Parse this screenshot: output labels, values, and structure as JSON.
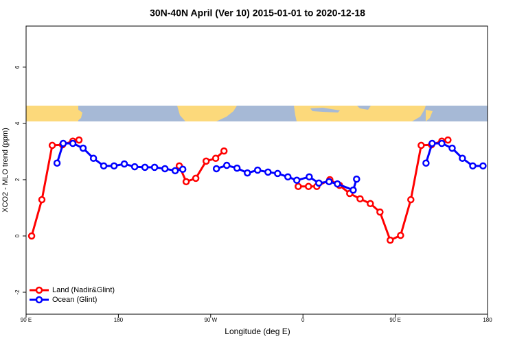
{
  "chart_data": {
    "type": "line",
    "title": "30N-40N April (Ver 10)   2015-01-01 to 2020-12-18",
    "xlabel": "Longitude (deg E)",
    "ylabel": "XCO2 - MLO trend (ppm)",
    "xlim": [
      90,
      540
    ],
    "ylim": [
      -2.78,
      7.46
    ],
    "xticks": [
      {
        "value": 90,
        "label": "90 E"
      },
      180,
      {
        "value": 270,
        "label": "90 W"
      },
      {
        "value": 360,
        "label": "0"
      },
      {
        "value": 450,
        "label": "90 E"
      },
      {
        "value": 540,
        "label": "180"
      }
    ],
    "yticks": [
      -2,
      0,
      2,
      4,
      6
    ],
    "legend": "bottom-left",
    "series": [
      {
        "name": "Land (Nadir&Glint)",
        "color": "#ff0000",
        "x": [
          95.4,
          105.4,
          115.5,
          125.5,
          135.6,
          141.6,
          null,
          239.4,
          246.1,
          255.5,
          265.6,
          274.9,
          283.0,
          null,
          355.4,
          365.4,
          373.5,
          386.2,
          395.6,
          405.6,
          415.7,
          425.7,
          435.1,
          445.1,
          455.2,
          465.2,
          475.3,
          485.3,
          495.4,
          501.4
        ],
        "values": [
          0.0,
          1.29,
          3.22,
          3.24,
          3.37,
          3.41,
          null,
          2.49,
          1.93,
          2.05,
          2.66,
          2.76,
          3.02,
          null,
          1.76,
          1.76,
          1.76,
          2.0,
          1.8,
          1.51,
          1.32,
          1.15,
          0.85,
          -0.15,
          0.02,
          1.29,
          3.22,
          3.24,
          3.37,
          3.41
        ]
      },
      {
        "name": "Ocean (Glint)",
        "color": "#0000ff",
        "x": [
          120.2,
          126.2,
          135.6,
          145.6,
          155.7,
          165.7,
          175.8,
          185.8,
          195.9,
          205.9,
          215.3,
          225.4,
          235.4,
          242.8,
          null,
          275.6,
          285.7,
          295.7,
          305.8,
          315.8,
          325.9,
          335.3,
          345.3,
          354.0,
          366.1,
          375.5,
          385.5,
          393.6,
          409.0,
          412.3,
          null,
          480.0,
          486.0,
          495.4,
          505.5,
          515.5,
          525.6,
          535.6
        ],
        "values": [
          2.59,
          3.29,
          3.29,
          3.12,
          2.76,
          2.49,
          2.49,
          2.56,
          2.46,
          2.44,
          2.44,
          2.39,
          2.32,
          2.37,
          null,
          2.39,
          2.51,
          2.41,
          2.24,
          2.34,
          2.27,
          2.22,
          2.1,
          1.98,
          2.1,
          1.88,
          1.93,
          1.85,
          1.63,
          2.02,
          null,
          2.59,
          3.29,
          3.29,
          3.12,
          2.76,
          2.49,
          2.49
        ]
      }
    ]
  }
}
